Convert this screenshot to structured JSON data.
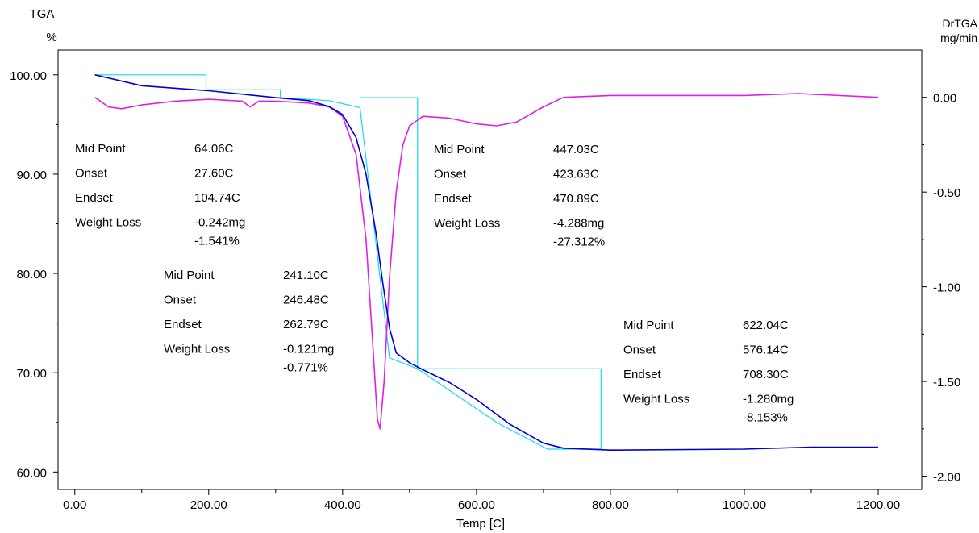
{
  "chart_data": {
    "type": "line",
    "y_left_title": [
      "TGA",
      "%"
    ],
    "y_right_title": [
      "DrTGA",
      "mg/min"
    ],
    "xlabel": "Temp  [C]",
    "xlim": [
      -25,
      1265
    ],
    "x_ticks": [
      0,
      200,
      400,
      600,
      800,
      1000,
      1200
    ],
    "x_tick_labels": [
      "0.00",
      "200.00",
      "400.00",
      "600.00",
      "800.00",
      "1000.00",
      "1200.00"
    ],
    "y_left_lim": [
      58.24,
      102.5
    ],
    "y_left_ticks": [
      60,
      70,
      80,
      90,
      100
    ],
    "y_left_tick_labels": [
      "60.00",
      "70.00",
      "80.00",
      "90.00",
      "100.00"
    ],
    "y_right_lim": [
      -2.07,
      0.25
    ],
    "y_right_ticks": [
      0,
      -0.5,
      -1,
      -1.5,
      -2
    ],
    "y_right_tick_labels": [
      "0.00",
      "-0.50",
      "-1.00",
      "-1.50",
      "-2.00"
    ],
    "grid": false,
    "colors": {
      "tga": "#0000d0",
      "drtga": "#e020e0",
      "steps": "#10dcec",
      "axis": "#000000"
    },
    "series": [
      {
        "key": "tga",
        "axis": "left",
        "points": [
          [
            30,
            100
          ],
          [
            100,
            98.9
          ],
          [
            200,
            98.4
          ],
          [
            300,
            97.7
          ],
          [
            350,
            97.4
          ],
          [
            380,
            96.8
          ],
          [
            400,
            96
          ],
          [
            420,
            93.7
          ],
          [
            435,
            90
          ],
          [
            450,
            84
          ],
          [
            460,
            79
          ],
          [
            470,
            74.5
          ],
          [
            480,
            72
          ],
          [
            500,
            71
          ],
          [
            520,
            70.3
          ],
          [
            560,
            69
          ],
          [
            600,
            67.3
          ],
          [
            650,
            64.8
          ],
          [
            700,
            62.9
          ],
          [
            730,
            62.4
          ],
          [
            800,
            62.2
          ],
          [
            1000,
            62.3
          ],
          [
            1100,
            62.5
          ],
          [
            1200,
            62.5
          ]
        ]
      },
      {
        "key": "drtga",
        "axis": "right",
        "points": [
          [
            30,
            0
          ],
          [
            50,
            -0.05
          ],
          [
            70,
            -0.06
          ],
          [
            100,
            -0.04
          ],
          [
            150,
            -0.02
          ],
          [
            200,
            -0.01
          ],
          [
            250,
            -0.02
          ],
          [
            262,
            -0.05
          ],
          [
            275,
            -0.02
          ],
          [
            300,
            -0.02
          ],
          [
            350,
            -0.03
          ],
          [
            380,
            -0.05
          ],
          [
            400,
            -0.1
          ],
          [
            420,
            -0.3
          ],
          [
            435,
            -0.75
          ],
          [
            445,
            -1.3
          ],
          [
            452,
            -1.7
          ],
          [
            456,
            -1.75
          ],
          [
            462,
            -1.5
          ],
          [
            470,
            -0.95
          ],
          [
            480,
            -0.5
          ],
          [
            490,
            -0.25
          ],
          [
            500,
            -0.15
          ],
          [
            520,
            -0.1
          ],
          [
            560,
            -0.11
          ],
          [
            600,
            -0.14
          ],
          [
            630,
            -0.15
          ],
          [
            660,
            -0.13
          ],
          [
            700,
            -0.05
          ],
          [
            730,
            0
          ],
          [
            800,
            0.01
          ],
          [
            1000,
            0.01
          ],
          [
            1080,
            0.02
          ],
          [
            1200,
            0.0
          ]
        ]
      },
      {
        "key": "steps",
        "axis": "left",
        "points": [
          [
            30,
            100
          ],
          [
            196,
            100
          ],
          [
            196,
            98.5
          ],
          [
            307,
            98.5
          ],
          [
            307,
            97.7
          ],
          [
            380,
            97.4
          ],
          [
            426,
            96.7
          ],
          [
            470,
            71.5
          ],
          [
            512,
            70.4
          ],
          [
            786,
            70.4
          ],
          [
            786,
            62.3
          ],
          [
            706,
            62.3
          ],
          [
            630,
            65
          ],
          [
            512,
            70.4
          ],
          [
            512,
            97.7
          ],
          [
            426,
            97.7
          ]
        ]
      }
    ],
    "annotations": [
      {
        "x": 93,
        "y": 189,
        "rows": [
          [
            "Mid Point",
            "64.06C"
          ],
          [
            "Onset",
            "27.60C"
          ],
          [
            "Endset",
            "104.74C"
          ],
          [
            "Weight Loss",
            "-0.242mg"
          ],
          [
            "",
            "-1.541%"
          ]
        ]
      },
      {
        "x": 203,
        "y": 346,
        "rows": [
          [
            "Mid Point",
            "241.10C"
          ],
          [
            "Onset",
            "246.48C"
          ],
          [
            "Endset",
            "262.79C"
          ],
          [
            "Weight Loss",
            "-0.121mg"
          ],
          [
            "",
            "-0.771%"
          ]
        ]
      },
      {
        "x": 538,
        "y": 190,
        "rows": [
          [
            "Mid Point",
            "447.03C"
          ],
          [
            "Onset",
            "423.63C"
          ],
          [
            "Endset",
            "470.89C"
          ],
          [
            "Weight Loss",
            "-4.288mg"
          ],
          [
            "",
            "-27.312%"
          ]
        ]
      },
      {
        "x": 773,
        "y": 408,
        "rows": [
          [
            "Mid Point",
            "622.04C"
          ],
          [
            "Onset",
            "576.14C"
          ],
          [
            "Endset",
            "708.30C"
          ],
          [
            "Weight Loss",
            "-1.280mg"
          ],
          [
            "",
            "-8.153%"
          ]
        ]
      }
    ]
  }
}
